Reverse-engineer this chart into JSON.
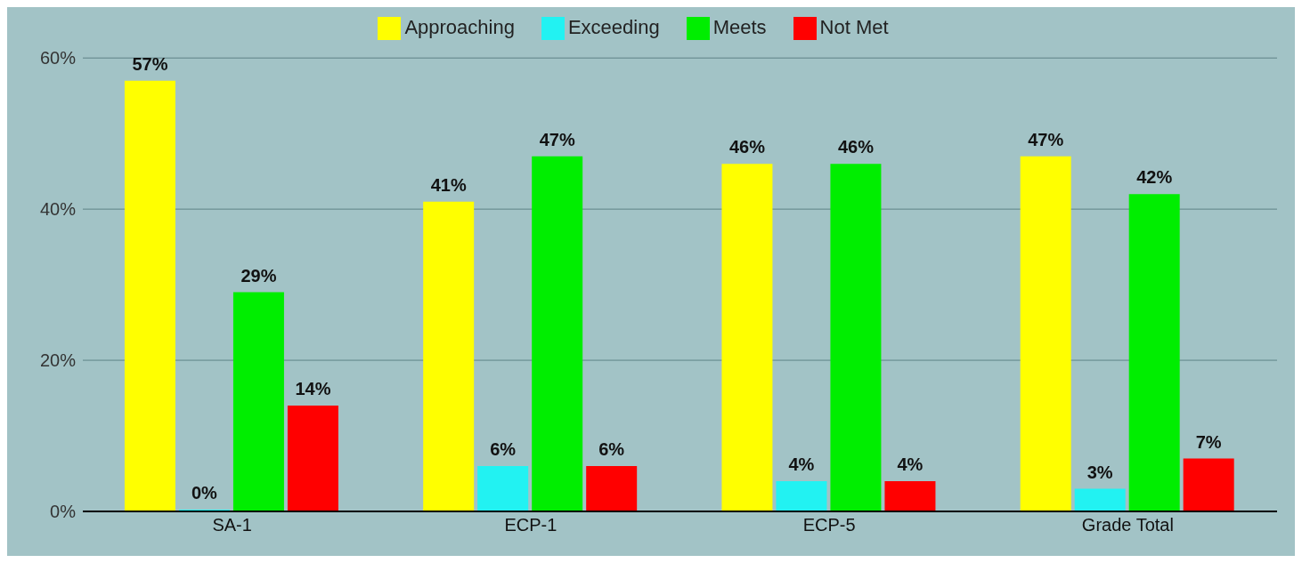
{
  "chart_data": {
    "type": "bar",
    "categories": [
      "SA-1",
      "ECP-1",
      "ECP-5",
      "Grade Total"
    ],
    "series": [
      {
        "name": "Approaching",
        "color": "#ffff00",
        "values": [
          57,
          41,
          46,
          47
        ],
        "value_labels": [
          "57%",
          "41%",
          "46%",
          "47%"
        ]
      },
      {
        "name": "Exceeding",
        "color": "#22f2f2",
        "values": [
          0,
          6,
          4,
          3
        ],
        "value_labels": [
          "0%",
          "6%",
          "4%",
          "3%"
        ]
      },
      {
        "name": "Meets",
        "color": "#00ee00",
        "values": [
          29,
          47,
          46,
          42
        ],
        "value_labels": [
          "29%",
          "47%",
          "46%",
          "42%"
        ]
      },
      {
        "name": "Not Met",
        "color": "#ff0000",
        "values": [
          14,
          6,
          4,
          7
        ],
        "value_labels": [
          "14%",
          "6%",
          "4%",
          "7%"
        ]
      }
    ],
    "ylim": [
      0,
      60
    ],
    "yticks": [
      {
        "value": 0,
        "label": "0%"
      },
      {
        "value": 20,
        "label": "20%"
      },
      {
        "value": 40,
        "label": "40%"
      },
      {
        "value": 60,
        "label": "60%"
      }
    ],
    "grid": "y",
    "legend": "top"
  }
}
